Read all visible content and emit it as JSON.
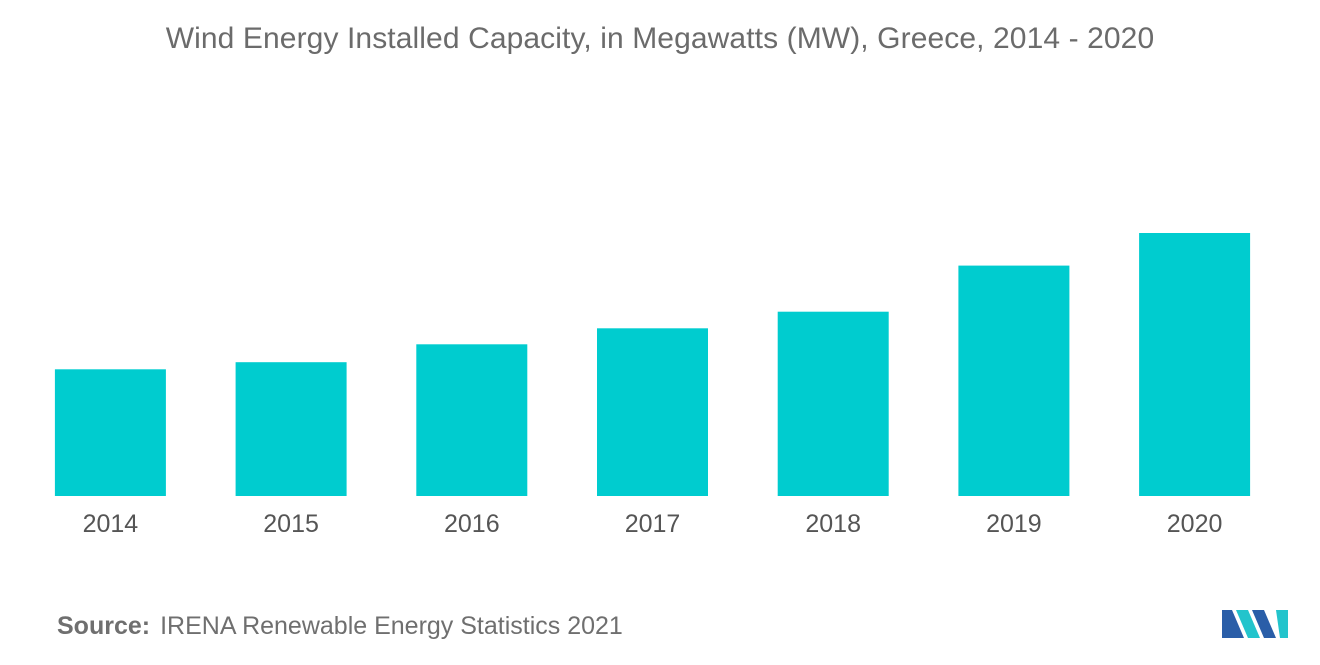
{
  "chart_data": {
    "type": "bar",
    "title": "Wind Energy Installed Capacity, in Megawatts (MW),  Greece, 2014 - 2020",
    "categories": [
      "2014",
      "2015",
      "2016",
      "2017",
      "2018",
      "2019",
      "2020"
    ],
    "values": [
      1980,
      2090,
      2370,
      2620,
      2880,
      3600,
      4110
    ],
    "ylim": [
      0,
      4500
    ],
    "grid": false,
    "xlabel": "",
    "ylabel": "",
    "bar_color": "#00cccf",
    "tick_color": "#555555"
  },
  "source": {
    "label": "Source:",
    "text": "IRENA Renewable Energy Statistics 2021"
  },
  "logo": {
    "icon": "mordor-intelligence-logo-icon",
    "colors": [
      "#2a5ea8",
      "#23c4cc"
    ]
  }
}
